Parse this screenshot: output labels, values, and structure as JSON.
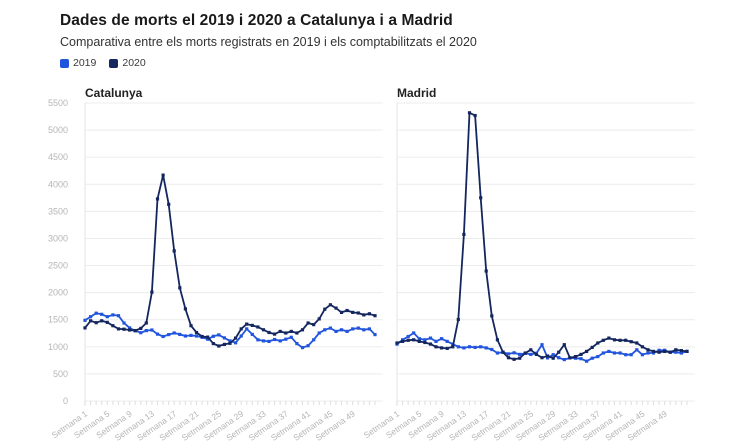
{
  "header": {
    "title": "Dades de morts el 2019 i 2020 a Catalunya i a Madrid",
    "subtitle": "Comparativa entre els morts registrats en 2019 i els comptabilitzats el 2020"
  },
  "legend": [
    {
      "label": "2019",
      "color": "#2255dd"
    },
    {
      "label": "2020",
      "color": "#14265e"
    }
  ],
  "colors": {
    "grid": "#ececec",
    "axis_line": "#e3e3e3",
    "tick": "#dddddd",
    "tick_label": "#b5b5b5",
    "chart_title": "#222222"
  },
  "chart_data": [
    {
      "type": "line",
      "title": "Catalunya",
      "x_unit": "Setmana",
      "x_tick_labels": [
        "Setmana 1",
        "Setmana 5",
        "Setmana 9",
        "Setmana 13",
        "Setmana 17",
        "Setmana 21",
        "Setmana 25",
        "Setmana 29",
        "Setmana 33",
        "Setmana 37",
        "Setmana 41",
        "Setmana 45",
        "Setmana 49"
      ],
      "x": [
        1,
        2,
        3,
        4,
        5,
        6,
        7,
        8,
        9,
        10,
        11,
        12,
        13,
        14,
        15,
        16,
        17,
        18,
        19,
        20,
        21,
        22,
        23,
        24,
        25,
        26,
        27,
        28,
        29,
        30,
        31,
        32,
        33,
        34,
        35,
        36,
        37,
        38,
        39,
        40,
        41,
        42,
        43,
        44,
        45,
        46,
        47,
        48,
        49,
        50,
        51,
        52,
        53
      ],
      "y_ticks": [
        0,
        500,
        1000,
        1500,
        2000,
        2500,
        3000,
        3500,
        4000,
        4500,
        5000,
        5500
      ],
      "ylim": [
        0,
        5500
      ],
      "grid": true,
      "show_y_labels": true,
      "series": [
        {
          "name": "2019",
          "color": "#2255dd",
          "values": [
            1490,
            1555,
            1620,
            1600,
            1555,
            1590,
            1575,
            1440,
            1350,
            1295,
            1260,
            1300,
            1310,
            1235,
            1190,
            1225,
            1255,
            1230,
            1200,
            1210,
            1200,
            1175,
            1140,
            1195,
            1220,
            1165,
            1110,
            1075,
            1200,
            1330,
            1230,
            1130,
            1110,
            1100,
            1135,
            1110,
            1140,
            1175,
            1060,
            985,
            1020,
            1130,
            1255,
            1315,
            1345,
            1285,
            1315,
            1285,
            1330,
            1345,
            1315,
            1330,
            1225
          ]
        },
        {
          "name": "2020",
          "color": "#14265e",
          "values": [
            1350,
            1480,
            1445,
            1480,
            1450,
            1390,
            1330,
            1325,
            1310,
            1300,
            1340,
            1440,
            2010,
            3730,
            4170,
            3630,
            2770,
            2090,
            1700,
            1390,
            1265,
            1190,
            1180,
            1060,
            1015,
            1045,
            1065,
            1160,
            1330,
            1420,
            1395,
            1365,
            1315,
            1265,
            1235,
            1285,
            1255,
            1285,
            1255,
            1315,
            1440,
            1410,
            1515,
            1695,
            1775,
            1715,
            1635,
            1670,
            1635,
            1625,
            1590,
            1610,
            1575
          ]
        }
      ]
    },
    {
      "type": "line",
      "title": "Madrid",
      "x_unit": "Setmana",
      "x_tick_labels": [
        "Setmana 1",
        "Setmana 5",
        "Setmana 9",
        "Setmana 13",
        "Setmana 17",
        "Setmana 21",
        "Setmana 25",
        "Setmana 29",
        "Setmana 33",
        "Setmana 37",
        "Setmana 41",
        "Setmana 45",
        "Setmana 49"
      ],
      "x": [
        1,
        2,
        3,
        4,
        5,
        6,
        7,
        8,
        9,
        10,
        11,
        12,
        13,
        14,
        15,
        16,
        17,
        18,
        19,
        20,
        21,
        22,
        23,
        24,
        25,
        26,
        27,
        28,
        29,
        30,
        31,
        32,
        33,
        34,
        35,
        36,
        37,
        38,
        39,
        40,
        41,
        42,
        43,
        44,
        45,
        46,
        47,
        48,
        49,
        50,
        51,
        52,
        53
      ],
      "y_ticks": [
        0,
        500,
        1000,
        1500,
        2000,
        2500,
        3000,
        3500,
        4000,
        4500,
        5000,
        5500
      ],
      "ylim": [
        0,
        5500
      ],
      "grid": true,
      "show_y_labels": false,
      "series": [
        {
          "name": "2019",
          "color": "#2255dd",
          "values": [
            1050,
            1130,
            1190,
            1255,
            1150,
            1130,
            1160,
            1100,
            1150,
            1100,
            1050,
            1000,
            980,
            1000,
            990,
            1000,
            980,
            950,
            885,
            900,
            870,
            890,
            860,
            880,
            860,
            880,
            1040,
            795,
            855,
            800,
            765,
            795,
            790,
            780,
            735,
            790,
            820,
            885,
            915,
            885,
            885,
            855,
            855,
            945,
            855,
            885,
            885,
            935,
            935,
            900,
            900,
            885,
            915
          ]
        },
        {
          "name": "2020",
          "color": "#14265e",
          "values": [
            1070,
            1100,
            1120,
            1130,
            1100,
            1080,
            1050,
            1000,
            980,
            970,
            1000,
            1505,
            3075,
            5320,
            5270,
            3750,
            2400,
            1570,
            1130,
            900,
            800,
            770,
            790,
            885,
            945,
            860,
            800,
            830,
            790,
            900,
            1040,
            795,
            820,
            860,
            915,
            990,
            1070,
            1120,
            1160,
            1130,
            1120,
            1120,
            1095,
            1070,
            1000,
            945,
            915,
            900,
            915,
            900,
            945,
            930,
            915
          ]
        }
      ]
    }
  ]
}
